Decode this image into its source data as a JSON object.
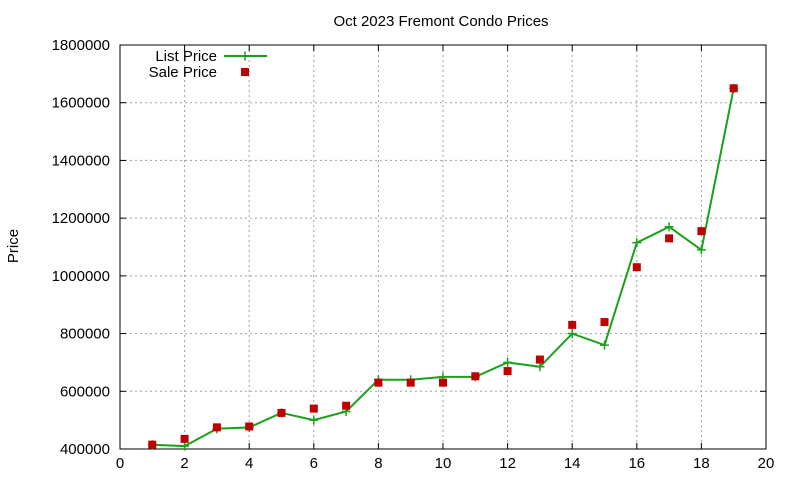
{
  "chart_data": {
    "type": "line",
    "title": "Oct 2023 Fremont Condo Prices",
    "xlabel": "",
    "ylabel": "Price",
    "xlim": [
      0,
      20
    ],
    "ylim": [
      400000,
      1800000
    ],
    "x_ticks": [
      0,
      2,
      4,
      6,
      8,
      10,
      12,
      14,
      16,
      18,
      20
    ],
    "y_ticks": [
      400000,
      600000,
      800000,
      1000000,
      1200000,
      1400000,
      1600000,
      1800000
    ],
    "grid": true,
    "legend_position": "top-left",
    "series": [
      {
        "name": "List Price",
        "style": "line+cross",
        "color": "#1aa01a",
        "points": [
          [
            1,
            415000
          ],
          [
            2,
            410000
          ],
          [
            3,
            470000
          ],
          [
            4,
            475000
          ],
          [
            5,
            525000
          ],
          [
            6,
            500000
          ],
          [
            7,
            530000
          ],
          [
            8,
            640000
          ],
          [
            9,
            640000
          ],
          [
            10,
            650000
          ],
          [
            11,
            650000
          ],
          [
            12,
            700000
          ],
          [
            13,
            685000
          ],
          [
            14,
            800000
          ],
          [
            15,
            760000
          ],
          [
            16,
            1115000
          ],
          [
            17,
            1170000
          ],
          [
            18,
            1090000
          ],
          [
            19,
            1650000
          ]
        ]
      },
      {
        "name": "Sale Price",
        "style": "square",
        "color": "#c00000",
        "points": [
          [
            1,
            415000
          ],
          [
            2,
            435000
          ],
          [
            3,
            475000
          ],
          [
            4,
            478000
          ],
          [
            5,
            525000
          ],
          [
            6,
            540000
          ],
          [
            7,
            550000
          ],
          [
            8,
            630000
          ],
          [
            9,
            630000
          ],
          [
            10,
            630000
          ],
          [
            11,
            652000
          ],
          [
            12,
            670000
          ],
          [
            13,
            710000
          ],
          [
            14,
            830000
          ],
          [
            15,
            840000
          ],
          [
            16,
            1030000
          ],
          [
            17,
            1130000
          ],
          [
            18,
            1155000
          ],
          [
            19,
            1650000
          ]
        ]
      }
    ]
  }
}
